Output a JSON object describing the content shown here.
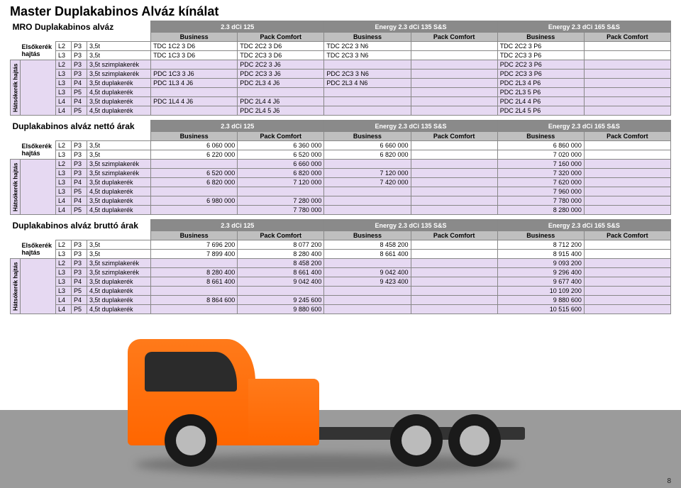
{
  "page_number": "8",
  "title": "Master Duplakabinos Alváz kínálat",
  "engines": [
    "2.3 dCi 125",
    "Energy 2.3 dCi 135 S&S",
    "Energy 2.3 dCi 165 S&S"
  ],
  "trims": [
    "Business",
    "Pack Comfort"
  ],
  "row_group_front": "Elsőkerék hajtás",
  "row_group_rear": "Hátsókerék hajtás",
  "sections": [
    {
      "label": "MRO Duplakabinos alváz",
      "front": [
        {
          "c": [
            "L2",
            "P3",
            "3,5t"
          ],
          "v": [
            "TDC 1C2 3 D6",
            "TDC 2C2 3 D6",
            "TDC 2C2 3 N6",
            "",
            "TDC 2C2 3 P6",
            ""
          ]
        },
        {
          "c": [
            "L3",
            "P3",
            "3,5t"
          ],
          "v": [
            "TDC 1C3 3 D6",
            "TDC 2C3 3 D6",
            "TDC 2C3 3 N6",
            "",
            "TDC 2C3 3 P6",
            ""
          ]
        }
      ],
      "rear": [
        {
          "c": [
            "L2",
            "P3",
            "3,5t szimplakerék"
          ],
          "v": [
            "",
            "PDC 2C2 3 J6",
            "",
            "",
            "PDC 2C2 3 P6",
            ""
          ]
        },
        {
          "c": [
            "L3",
            "P3",
            "3,5t szimplakerék"
          ],
          "v": [
            "PDC 1C3 3 J6",
            "PDC 2C3 3 J6",
            "PDC 2C3 3 N6",
            "",
            "PDC 2C3 3 P6",
            ""
          ]
        },
        {
          "c": [
            "L3",
            "P4",
            "3,5t duplakerék"
          ],
          "v": [
            "PDC 1L3 4 J6",
            "PDC 2L3 4 J6",
            "PDC 2L3 4 N6",
            "",
            "PDC 2L3 4 P6",
            ""
          ]
        },
        {
          "c": [
            "L3",
            "P5",
            "4,5t duplakerék"
          ],
          "v": [
            "",
            "",
            "",
            "",
            "PDC 2L3 5 P6",
            ""
          ]
        },
        {
          "c": [
            "L4",
            "P4",
            "3,5t duplakerék"
          ],
          "v": [
            "PDC 1L4 4 J6",
            "PDC 2L4 4 J6",
            "",
            "",
            "PDC 2L4 4 P6",
            ""
          ]
        },
        {
          "c": [
            "L4",
            "P5",
            "4,5t duplakerék"
          ],
          "v": [
            "",
            "PDC 2L4 5 J6",
            "",
            "",
            "PDC 2L4 5 P6",
            ""
          ]
        }
      ]
    },
    {
      "label": "Duplakabinos alváz nettó árak",
      "front": [
        {
          "c": [
            "L2",
            "P3",
            "3,5t"
          ],
          "v": [
            "6 060 000",
            "6 360 000",
            "6 660 000",
            "",
            "6 860 000",
            ""
          ]
        },
        {
          "c": [
            "L3",
            "P3",
            "3,5t"
          ],
          "v": [
            "6 220 000",
            "6 520 000",
            "6 820 000",
            "",
            "7 020 000",
            ""
          ]
        }
      ],
      "rear": [
        {
          "c": [
            "L2",
            "P3",
            "3,5t szimplakerék"
          ],
          "v": [
            "",
            "6 660 000",
            "",
            "",
            "7 160 000",
            ""
          ]
        },
        {
          "c": [
            "L3",
            "P3",
            "3,5t szimplakerék"
          ],
          "v": [
            "6 520 000",
            "6 820 000",
            "7 120 000",
            "",
            "7 320 000",
            ""
          ]
        },
        {
          "c": [
            "L3",
            "P4",
            "3,5t duplakerék"
          ],
          "v": [
            "6 820 000",
            "7 120 000",
            "7 420 000",
            "",
            "7 620 000",
            ""
          ]
        },
        {
          "c": [
            "L3",
            "P5",
            "4,5t duplakerék"
          ],
          "v": [
            "",
            "",
            "",
            "",
            "7 960 000",
            ""
          ]
        },
        {
          "c": [
            "L4",
            "P4",
            "3,5t duplakerék"
          ],
          "v": [
            "6 980 000",
            "7 280 000",
            "",
            "",
            "7 780 000",
            ""
          ]
        },
        {
          "c": [
            "L4",
            "P5",
            "4,5t duplakerék"
          ],
          "v": [
            "",
            "7 780 000",
            "",
            "",
            "8 280 000",
            ""
          ]
        }
      ]
    },
    {
      "label": "Duplakabinos alváz bruttó árak",
      "front": [
        {
          "c": [
            "L2",
            "P3",
            "3,5t"
          ],
          "v": [
            "7 696 200",
            "8 077 200",
            "8 458 200",
            "",
            "8 712 200",
            ""
          ]
        },
        {
          "c": [
            "L3",
            "P3",
            "3,5t"
          ],
          "v": [
            "7 899 400",
            "8 280 400",
            "8 661 400",
            "",
            "8 915 400",
            ""
          ]
        }
      ],
      "rear": [
        {
          "c": [
            "L2",
            "P3",
            "3,5t szimplakerék"
          ],
          "v": [
            "",
            "8 458 200",
            "",
            "",
            "9 093 200",
            ""
          ]
        },
        {
          "c": [
            "L3",
            "P3",
            "3,5t szimplakerék"
          ],
          "v": [
            "8 280 400",
            "8 661 400",
            "9 042 400",
            "",
            "9 296 400",
            ""
          ]
        },
        {
          "c": [
            "L3",
            "P4",
            "3,5t duplakerék"
          ],
          "v": [
            "8 661 400",
            "9 042 400",
            "9 423 400",
            "",
            "9 677 400",
            ""
          ]
        },
        {
          "c": [
            "L3",
            "P5",
            "4,5t duplakerék"
          ],
          "v": [
            "",
            "",
            "",
            "",
            "10 109 200",
            ""
          ]
        },
        {
          "c": [
            "L4",
            "P4",
            "3,5t duplakerék"
          ],
          "v": [
            "8 864 600",
            "9 245 600",
            "",
            "",
            "9 880 600",
            ""
          ]
        },
        {
          "c": [
            "L4",
            "P5",
            "4,5t duplakerék"
          ],
          "v": [
            "",
            "9 880 600",
            "",
            "",
            "10 515 600",
            ""
          ]
        }
      ]
    }
  ]
}
